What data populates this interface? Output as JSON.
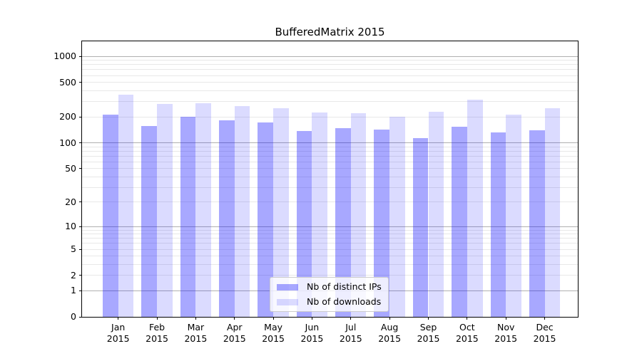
{
  "title": "BufferedMatrix 2015",
  "chart_data": {
    "type": "bar",
    "title": "BufferedMatrix 2015",
    "categories": [
      "Jan 2015",
      "Feb 2015",
      "Mar 2015",
      "Apr 2015",
      "May 2015",
      "Jun 2015",
      "Jul 2015",
      "Aug 2015",
      "Sep 2015",
      "Oct 2015",
      "Nov 2015",
      "Dec 2015"
    ],
    "x_tick_lines": [
      {
        "month": "Jan",
        "year": "2015"
      },
      {
        "month": "Feb",
        "year": "2015"
      },
      {
        "month": "Mar",
        "year": "2015"
      },
      {
        "month": "Apr",
        "year": "2015"
      },
      {
        "month": "May",
        "year": "2015"
      },
      {
        "month": "Jun",
        "year": "2015"
      },
      {
        "month": "Jul",
        "year": "2015"
      },
      {
        "month": "Aug",
        "year": "2015"
      },
      {
        "month": "Sep",
        "year": "2015"
      },
      {
        "month": "Oct",
        "year": "2015"
      },
      {
        "month": "Nov",
        "year": "2015"
      },
      {
        "month": "Dec",
        "year": "2015"
      }
    ],
    "series": [
      {
        "name": "Nb of distinct IPs",
        "color": "rgba(0,0,255,0.34)",
        "values": [
          211,
          158,
          199,
          184,
          172,
          138,
          147,
          142,
          114,
          155,
          131,
          141
        ]
      },
      {
        "name": "Nb of downloads",
        "color": "rgba(0,0,255,0.14)",
        "values": [
          362,
          281,
          287,
          265,
          250,
          225,
          220,
          202,
          227,
          315,
          214,
          252
        ]
      }
    ],
    "yscale": "log1p",
    "yticks": [
      0,
      1,
      2,
      5,
      10,
      20,
      50,
      100,
      200,
      500,
      1000
    ],
    "ytick_labels": [
      "0",
      "1",
      "2",
      "5",
      "10",
      "20",
      "50",
      "100",
      "200",
      "500",
      "1000"
    ],
    "ylim": [
      0,
      1490
    ],
    "grid": true,
    "legend_position": "lower center"
  },
  "legend": {
    "items": [
      {
        "label": "Nb of distinct IPs",
        "color": "rgba(0,0,255,0.34)"
      },
      {
        "label": "Nb of downloads",
        "color": "rgba(0,0,255,0.14)"
      }
    ]
  },
  "colors": {
    "bar_distinct_ips": "rgba(0,0,255,0.34)",
    "bar_downloads": "rgba(0,0,255,0.14)",
    "grid_major": "#b0b0b0",
    "grid_minor": "#e8e8e8",
    "spine": "#000000",
    "background": "#ffffff"
  }
}
